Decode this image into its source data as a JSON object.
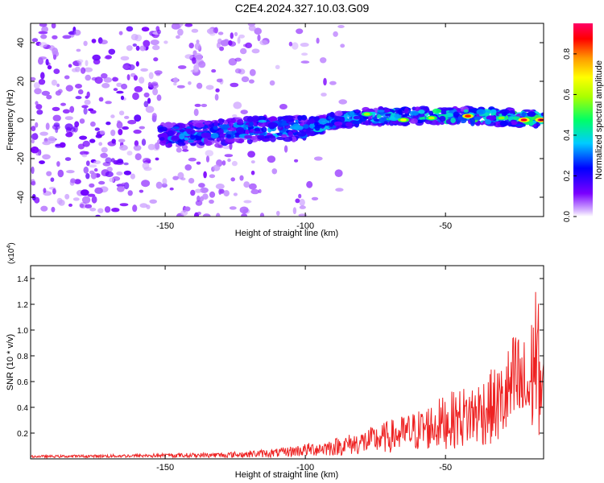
{
  "title": "C2E4.2024.327.10.03.G09",
  "chart_data": [
    {
      "type": "heatmap",
      "xlabel": "Height of straight line (km)",
      "ylabel": "Frequency (Hz)",
      "xlim": [
        -198,
        -15
      ],
      "ylim": [
        -50,
        50
      ],
      "xticks": [
        -150,
        -100,
        -50
      ],
      "yticks": [
        -40,
        -20,
        0,
        20,
        40
      ],
      "colorbar": {
        "label": "Normalized spectral amplitude",
        "range": [
          0,
          0.95
        ],
        "ticks": [
          0.0,
          0.2,
          0.4,
          0.6,
          0.8
        ],
        "tick_labels": [
          "0.0",
          "0.2",
          "0.4",
          "0.6",
          "0.8"
        ],
        "colors": [
          "#ffffff",
          "#7a00ff",
          "#0000ff",
          "#00ccff",
          "#00ff66",
          "#aaff00",
          "#ffff00",
          "#ff9900",
          "#ff0000",
          "#ff0066"
        ]
      },
      "ridge": {
        "description_points_x": [
          -150,
          -130,
          -110,
          -100,
          -80,
          -60,
          -40,
          -20,
          -15
        ],
        "description_points_y": [
          -8,
          -6,
          -4,
          -4,
          2,
          2,
          2,
          1,
          0
        ]
      }
    },
    {
      "type": "line",
      "xlabel": "Height of straight line (km)",
      "ylabel": "SNR (10 * v/v)",
      "scale_label": "(x10",
      "scale_exp": "4",
      "xlim": [
        -198,
        -15
      ],
      "ylim": [
        0,
        1.5
      ],
      "xticks": [
        -150,
        -100,
        -50
      ],
      "yticks": [
        0.2,
        0.4,
        0.6,
        0.8,
        1.0,
        1.2,
        1.4
      ],
      "series": [
        {
          "color": "#ee2222",
          "envelope_x": [
            -198,
            -170,
            -150,
            -130,
            -110,
            -100,
            -90,
            -80,
            -70,
            -60,
            -50,
            -40,
            -30,
            -25,
            -20,
            -18,
            -15
          ],
          "envelope_y": [
            0.02,
            0.03,
            0.04,
            0.05,
            0.08,
            0.12,
            0.16,
            0.22,
            0.3,
            0.38,
            0.5,
            0.6,
            0.75,
            1.02,
            0.9,
            1.48,
            0.8
          ]
        }
      ]
    }
  ]
}
